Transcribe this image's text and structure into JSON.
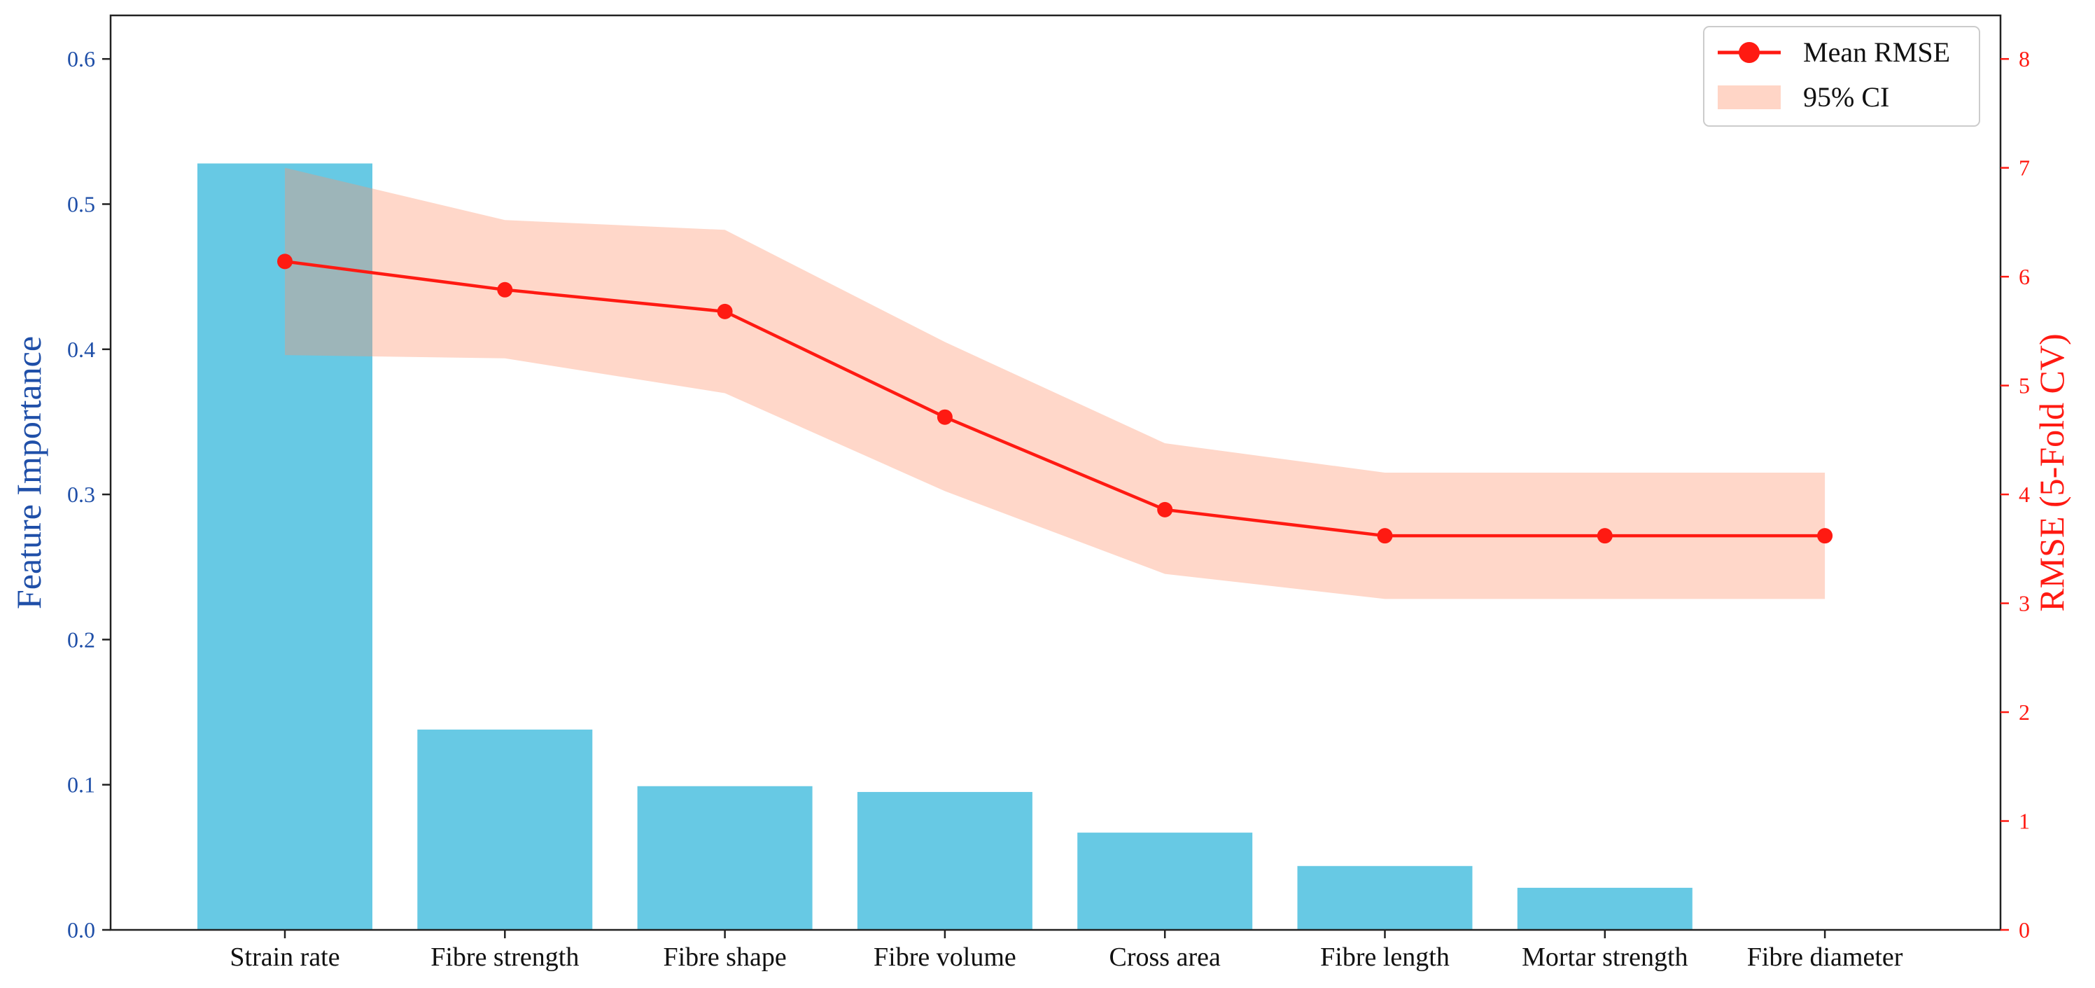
{
  "chart_data": {
    "type": "bar",
    "categories": [
      "Strain rate",
      "Fibre strength",
      "Fibre shape",
      "Fibre volume",
      "Cross area",
      "Fibre length",
      "Mortar strength",
      "Fibre diameter"
    ],
    "series": [
      {
        "axis": "left",
        "type": "bar",
        "values": [
          0.528,
          0.138,
          0.099,
          0.095,
          0.067,
          0.044,
          0.029,
          0.0
        ]
      },
      {
        "name": "Mean RMSE",
        "axis": "right",
        "type": "line",
        "values": [
          6.14,
          5.88,
          5.68,
          4.71,
          3.86,
          3.62,
          3.62,
          3.62
        ],
        "ci_name": "95% CI",
        "ci_lower": [
          5.28,
          5.25,
          4.93,
          4.03,
          3.27,
          3.04,
          3.04,
          3.04
        ],
        "ci_upper": [
          7.0,
          6.52,
          6.43,
          5.4,
          4.47,
          4.2,
          4.2,
          4.2
        ]
      }
    ],
    "ylabel": "Feature Importance",
    "y2label": "RMSE (5-Fold CV)",
    "ylim": [
      0,
      0.63
    ],
    "y2lim": [
      0,
      8.4
    ],
    "yticks": [
      "0.0",
      "0.1",
      "0.2",
      "0.3",
      "0.4",
      "0.5",
      "0.6"
    ],
    "y2ticks": [
      "0",
      "1",
      "2",
      "3",
      "4",
      "5",
      "6",
      "7",
      "8"
    ],
    "legend": {
      "position": "top-right",
      "entries": [
        "Mean RMSE",
        "95% CI"
      ]
    },
    "grid": false,
    "colors": {
      "bar": "#5bc5e2",
      "line": "#ff1a12",
      "ci_fill": "#ffd5c6",
      "left_axis": "#1f4fa8",
      "right_axis": "#ff1a12"
    }
  }
}
